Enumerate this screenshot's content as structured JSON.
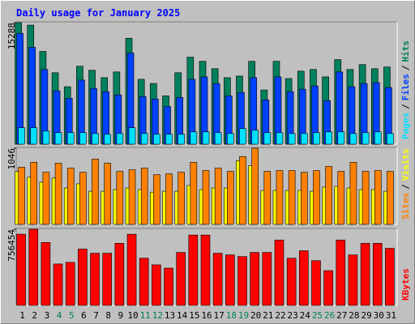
{
  "chart_data": [
    {
      "type": "bar",
      "title": "Daily usage for January 2025",
      "ylim": [
        0,
        15288
      ],
      "yticks": [
        15288
      ],
      "legend_separator": "/",
      "series": [
        {
          "name": "Pages",
          "color": "#00e0ff",
          "values": [
            2070,
            2070,
            1650,
            1450,
            1450,
            1450,
            1340,
            1240,
            1340,
            2070,
            1340,
            1240,
            1240,
            1240,
            1550,
            1550,
            1450,
            1340,
            1960,
            1760,
            1450,
            1450,
            1340,
            1340,
            1450,
            1550,
            1550,
            1340,
            1450,
            1550,
            1340
          ]
        },
        {
          "name": "Files",
          "color": "#0040ff",
          "values": [
            13950,
            12190,
            9400,
            6710,
            5780,
            8060,
            7020,
            6610,
            6200,
            11470,
            5990,
            5680,
            4750,
            5890,
            8160,
            8470,
            7640,
            6090,
            6510,
            8370,
            5580,
            8470,
            6610,
            6920,
            7330,
            5480,
            9090,
            7230,
            7640,
            7750,
            7130
          ]
        },
        {
          "name": "Hits",
          "color": "#00805c",
          "values": [
            15288,
            14980,
            11670,
            8990,
            7230,
            9810,
            9300,
            8370,
            9090,
            13330,
            8160,
            7640,
            6090,
            8990,
            10950,
            10430,
            9500,
            8370,
            8570,
            10430,
            6820,
            10430,
            8260,
            9190,
            9400,
            8470,
            10640,
            9400,
            10020,
            9500,
            9710
          ]
        }
      ]
    },
    {
      "type": "bar",
      "ylim": [
        0,
        1046
      ],
      "yticks": [
        1046
      ],
      "legend_separator": "/",
      "series": [
        {
          "name": "Sites",
          "color": "#ff8000",
          "values": [
            785,
            853,
            716,
            841,
            773,
            716,
            898,
            841,
            728,
            750,
            773,
            682,
            694,
            716,
            853,
            739,
            773,
            728,
            932,
            1046,
            728,
            739,
            739,
            716,
            739,
            796,
            728,
            853,
            728,
            739,
            728
          ]
        },
        {
          "name": "Visits",
          "color": "#ffff00",
          "values": [
            728,
            648,
            580,
            637,
            500,
            557,
            455,
            455,
            478,
            500,
            478,
            443,
            455,
            455,
            534,
            478,
            500,
            500,
            875,
            807,
            466,
            466,
            466,
            466,
            455,
            512,
            523,
            500,
            478,
            478,
            455
          ]
        }
      ]
    },
    {
      "type": "bar",
      "ylim": [
        0,
        756454
      ],
      "yticks": [
        756454
      ],
      "categories": [
        "1",
        "2",
        "3",
        "4",
        "5",
        "6",
        "7",
        "8",
        "9",
        "10",
        "11",
        "12",
        "13",
        "14",
        "15",
        "16",
        "17",
        "18",
        "19",
        "20",
        "21",
        "22",
        "23",
        "24",
        "25",
        "26",
        "27",
        "28",
        "29",
        "30",
        "31"
      ],
      "label_colors": [
        "#000000",
        "#000000",
        "#000000",
        "#00805c",
        "#00805c",
        "#000000",
        "#000000",
        "#000000",
        "#000000",
        "#000000",
        "#00805c",
        "#00805c",
        "#000000",
        "#000000",
        "#000000",
        "#000000",
        "#000000",
        "#00805c",
        "#00805c",
        "#000000",
        "#000000",
        "#000000",
        "#000000",
        "#000000",
        "#00805c",
        "#00805c",
        "#000000",
        "#000000",
        "#000000",
        "#000000",
        "#000000"
      ],
      "series": [
        {
          "name": "KBytes",
          "color": "#ff0000",
          "values": [
            707100,
            756454,
            624900,
            411100,
            427500,
            559100,
            518000,
            518000,
            616700,
            707100,
            468700,
            402900,
            370000,
            526200,
            698900,
            698900,
            518000,
            501500,
            485100,
            526200,
            526200,
            649500,
            468700,
            542700,
            444000,
            345300,
            649500,
            501500,
            616700,
            616700,
            567300
          ]
        }
      ]
    }
  ]
}
